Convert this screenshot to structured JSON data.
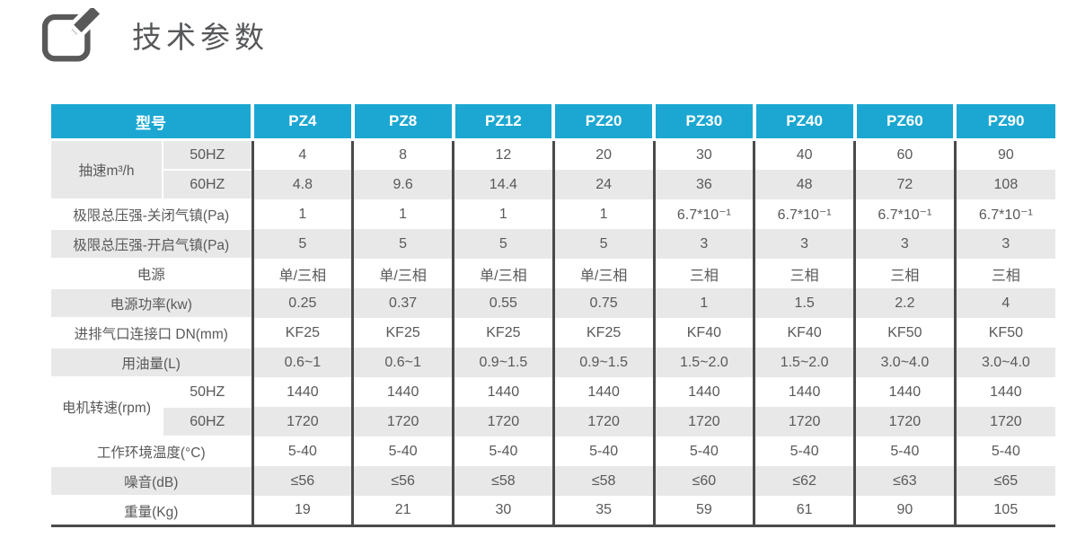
{
  "page": {
    "title": "技术参数",
    "icon": "edit-pencil-square"
  },
  "colors": {
    "header_bg": "#1ba7d2",
    "header_text": "#ffffff",
    "shaded_row_bg": "#e8e8e8",
    "body_text": "#595959",
    "dark_divider": "#4a4a4a",
    "title_text": "#57585a"
  },
  "table": {
    "corner_label": "型号",
    "models": [
      "PZ4",
      "PZ8",
      "PZ12",
      "PZ20",
      "PZ30",
      "PZ40",
      "PZ60",
      "PZ90"
    ],
    "rows": [
      {
        "group": "抽速m³/h",
        "group_rows": 2,
        "group_shaded": true,
        "sub": "50HZ",
        "label_shaded": true,
        "data_shaded": false,
        "values": [
          "4",
          "8",
          "12",
          "20",
          "30",
          "40",
          "60",
          "90"
        ]
      },
      {
        "sub": "60HZ",
        "label_shaded": true,
        "data_shaded": true,
        "values": [
          "4.8",
          "9.6",
          "14.4",
          "24",
          "36",
          "48",
          "72",
          "108"
        ]
      },
      {
        "label": "极限总压强-关闭气镇(Pa)",
        "label_shaded": false,
        "data_shaded": false,
        "values": [
          "1",
          "1",
          "1",
          "1",
          "6.7*10⁻¹",
          "6.7*10⁻¹",
          "6.7*10⁻¹",
          "6.7*10⁻¹"
        ]
      },
      {
        "label": "极限总压强-开启气镇(Pa)",
        "label_shaded": true,
        "data_shaded": true,
        "values": [
          "5",
          "5",
          "5",
          "5",
          "3",
          "3",
          "3",
          "3"
        ]
      },
      {
        "label": "电源",
        "label_shaded": false,
        "data_shaded": false,
        "values": [
          "单/三相",
          "单/三相",
          "单/三相",
          "单/三相",
          "三相",
          "三相",
          "三相",
          "三相"
        ]
      },
      {
        "label": "电源功率(kw)",
        "label_shaded": true,
        "data_shaded": true,
        "values": [
          "0.25",
          "0.37",
          "0.55",
          "0.75",
          "1",
          "1.5",
          "2.2",
          "4"
        ]
      },
      {
        "label": "进排气口连接口 DN(mm)",
        "label_shaded": false,
        "data_shaded": false,
        "values": [
          "KF25",
          "KF25",
          "KF25",
          "KF25",
          "KF40",
          "KF40",
          "KF50",
          "KF50"
        ]
      },
      {
        "label": "用油量(L)",
        "label_shaded": true,
        "data_shaded": true,
        "values": [
          "0.6~1",
          "0.6~1",
          "0.9~1.5",
          "0.9~1.5",
          "1.5~2.0",
          "1.5~2.0",
          "3.0~4.0",
          "3.0~4.0"
        ]
      },
      {
        "group": "电机转速(rpm)",
        "group_rows": 2,
        "group_shaded": false,
        "sub": "50HZ",
        "label_shaded": false,
        "data_shaded": false,
        "values": [
          "1440",
          "1440",
          "1440",
          "1440",
          "1440",
          "1440",
          "1440",
          "1440"
        ]
      },
      {
        "sub": "60HZ",
        "label_shaded": true,
        "data_shaded": true,
        "values": [
          "1720",
          "1720",
          "1720",
          "1720",
          "1720",
          "1720",
          "1720",
          "1720"
        ]
      },
      {
        "label": "工作环境温度(°C)",
        "label_shaded": false,
        "data_shaded": false,
        "values": [
          "5-40",
          "5-40",
          "5-40",
          "5-40",
          "5-40",
          "5-40",
          "5-40",
          "5-40"
        ]
      },
      {
        "label": "噪音(dB)",
        "label_shaded": true,
        "data_shaded": true,
        "values": [
          "≤56",
          "≤56",
          "≤58",
          "≤58",
          "≤60",
          "≤62",
          "≤63",
          "≤65"
        ]
      },
      {
        "label": "重量(Kg)",
        "label_shaded": false,
        "data_shaded": false,
        "values": [
          "19",
          "21",
          "30",
          "35",
          "59",
          "61",
          "90",
          "105"
        ]
      }
    ]
  }
}
